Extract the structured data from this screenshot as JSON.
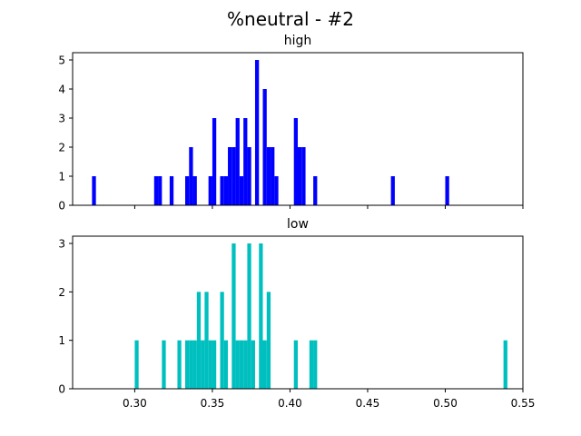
{
  "suptitle": "%neutral - #2",
  "chart_data": [
    {
      "type": "bar",
      "title": "high",
      "color": "#0000ff",
      "xlim": [
        0.26,
        0.55
      ],
      "ylim": [
        0,
        5.25
      ],
      "yticks": [
        0,
        1,
        2,
        3,
        4,
        5
      ],
      "xticks": [
        0.3,
        0.35,
        0.4,
        0.45,
        0.5,
        0.55
      ],
      "show_xtick_labels": false,
      "bin_width": 0.0025,
      "bins": [
        {
          "x": 0.2725,
          "y": 1
        },
        {
          "x": 0.3125,
          "y": 1
        },
        {
          "x": 0.315,
          "y": 1
        },
        {
          "x": 0.3225,
          "y": 1
        },
        {
          "x": 0.3325,
          "y": 1
        },
        {
          "x": 0.335,
          "y": 2
        },
        {
          "x": 0.3375,
          "y": 1
        },
        {
          "x": 0.3475,
          "y": 1
        },
        {
          "x": 0.35,
          "y": 3
        },
        {
          "x": 0.355,
          "y": 1
        },
        {
          "x": 0.3575,
          "y": 1
        },
        {
          "x": 0.36,
          "y": 2
        },
        {
          "x": 0.3625,
          "y": 2
        },
        {
          "x": 0.365,
          "y": 3
        },
        {
          "x": 0.3675,
          "y": 1
        },
        {
          "x": 0.37,
          "y": 3
        },
        {
          "x": 0.3725,
          "y": 2
        },
        {
          "x": 0.3775,
          "y": 5
        },
        {
          "x": 0.3825,
          "y": 4
        },
        {
          "x": 0.385,
          "y": 2
        },
        {
          "x": 0.3875,
          "y": 2
        },
        {
          "x": 0.39,
          "y": 1
        },
        {
          "x": 0.4025,
          "y": 3
        },
        {
          "x": 0.405,
          "y": 2
        },
        {
          "x": 0.4075,
          "y": 2
        },
        {
          "x": 0.415,
          "y": 1
        },
        {
          "x": 0.465,
          "y": 1
        },
        {
          "x": 0.5,
          "y": 1
        }
      ]
    },
    {
      "type": "bar",
      "title": "low",
      "color": "#00bfbf",
      "xlim": [
        0.26,
        0.55
      ],
      "ylim": [
        0,
        3.15
      ],
      "yticks": [
        0,
        1,
        2,
        3
      ],
      "xticks": [
        0.3,
        0.35,
        0.4,
        0.45,
        0.5,
        0.55
      ],
      "xtick_labels": [
        "0.30",
        "0.35",
        "0.40",
        "0.45",
        "0.50",
        "0.55"
      ],
      "show_xtick_labels": true,
      "bin_width": 0.0025,
      "bins": [
        {
          "x": 0.3,
          "y": 1
        },
        {
          "x": 0.3175,
          "y": 1
        },
        {
          "x": 0.3275,
          "y": 1
        },
        {
          "x": 0.3325,
          "y": 1
        },
        {
          "x": 0.335,
          "y": 1
        },
        {
          "x": 0.3375,
          "y": 1
        },
        {
          "x": 0.34,
          "y": 2
        },
        {
          "x": 0.3425,
          "y": 1
        },
        {
          "x": 0.345,
          "y": 2
        },
        {
          "x": 0.3475,
          "y": 1
        },
        {
          "x": 0.35,
          "y": 1
        },
        {
          "x": 0.355,
          "y": 2
        },
        {
          "x": 0.3575,
          "y": 1
        },
        {
          "x": 0.3625,
          "y": 3
        },
        {
          "x": 0.365,
          "y": 1
        },
        {
          "x": 0.3675,
          "y": 1
        },
        {
          "x": 0.37,
          "y": 1
        },
        {
          "x": 0.3725,
          "y": 3
        },
        {
          "x": 0.375,
          "y": 1
        },
        {
          "x": 0.38,
          "y": 3
        },
        {
          "x": 0.3825,
          "y": 1
        },
        {
          "x": 0.385,
          "y": 2
        },
        {
          "x": 0.4025,
          "y": 1
        },
        {
          "x": 0.4125,
          "y": 1
        },
        {
          "x": 0.415,
          "y": 1
        },
        {
          "x": 0.5375,
          "y": 1
        }
      ]
    }
  ]
}
